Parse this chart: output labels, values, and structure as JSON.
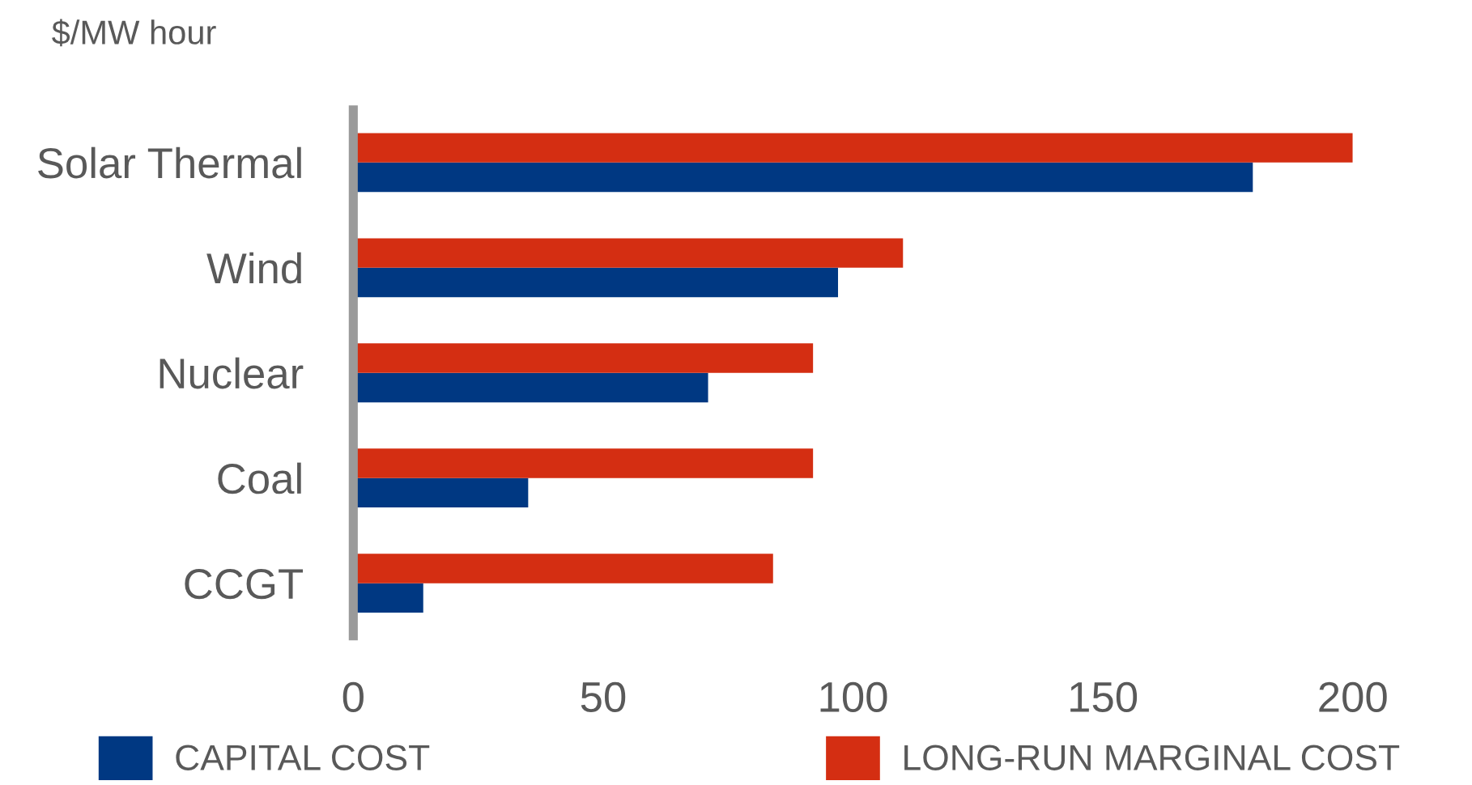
{
  "chart_data": {
    "type": "bar",
    "orientation": "horizontal",
    "xlabel": "$/MW hour",
    "categories": [
      "Solar Thermal",
      "Wind",
      "Nuclear",
      "Coal",
      "CCGT"
    ],
    "series": [
      {
        "name": "CAPITAL COST",
        "color": "#003882",
        "values": [
          180,
          97,
          71,
          35,
          14
        ]
      },
      {
        "name": "LONG-RUN MARGINAL COST",
        "color": "#d42e12",
        "values": [
          200,
          110,
          92,
          92,
          84
        ]
      }
    ],
    "xlim": [
      0,
      200
    ],
    "xticks": [
      0,
      50,
      100,
      150,
      200
    ],
    "grid": false,
    "legend": "bottom"
  }
}
